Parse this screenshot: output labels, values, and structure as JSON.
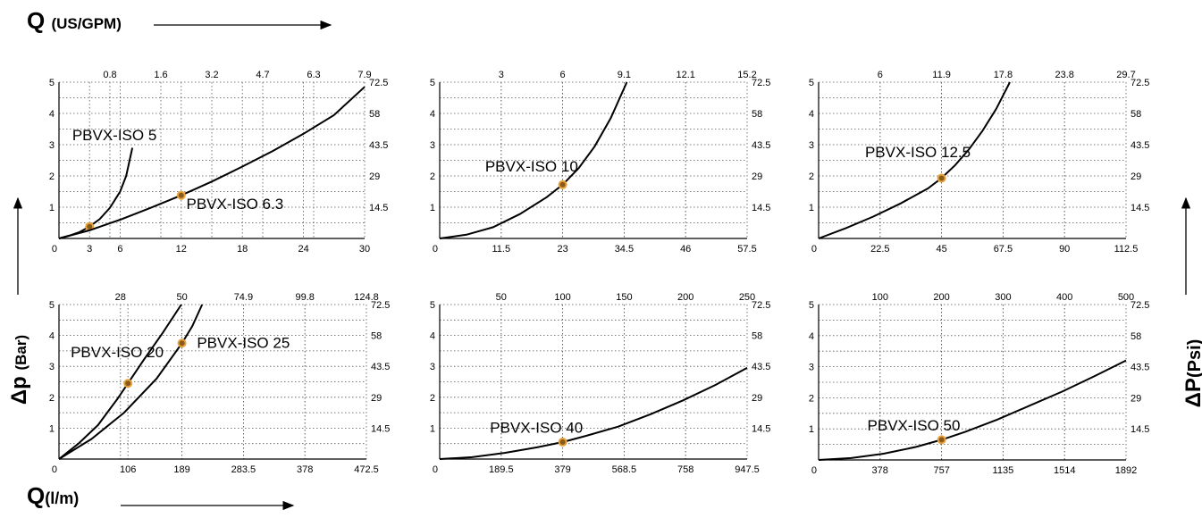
{
  "labels": {
    "q_top_main": "Q",
    "q_top_sub": "(US/GPM)",
    "q_bottom_main": "Q",
    "q_bottom_sub": "(l/m)",
    "dp_left_main": "Δp",
    "dp_left_sub": "(Bar)",
    "dp_right_main": "ΔP",
    "dp_right_sub": "(Psi)"
  },
  "colors": {
    "curve": "#000000",
    "marker": "#e8a23c",
    "grid": "#555555",
    "axis": "#000000"
  },
  "chart_data": [
    {
      "type": "line",
      "x_ticks": [
        0,
        3,
        6,
        12,
        18,
        24,
        30
      ],
      "x_tick_labels": [
        "0",
        "3",
        "6",
        "12",
        "18",
        "24",
        "30"
      ],
      "xlim": [
        0,
        30
      ],
      "top_ticks": [
        0.8,
        1.6,
        3.2,
        4.7,
        6.3,
        7.9
      ],
      "top_tick_labels": [
        "0.8",
        "1.6",
        "3.2",
        "4.7",
        "6.3",
        "7.9"
      ],
      "y_ticks": [
        1,
        2,
        3,
        4,
        5
      ],
      "y_tick_labels": [
        "1",
        "2",
        "3",
        "4",
        "5"
      ],
      "ylim": [
        0,
        5
      ],
      "right_ticks": [
        14.5,
        29,
        43.5,
        58,
        72.5
      ],
      "right_tick_labels": [
        "14.5",
        "29",
        "43.5",
        "58",
        "72.5"
      ],
      "grid": true,
      "series": [
        {
          "name": "PBVX-ISO 5",
          "x": [
            0,
            1,
            2,
            3,
            4,
            5,
            6,
            6.6,
            7.2
          ],
          "y": [
            0,
            0.09,
            0.2,
            0.38,
            0.62,
            0.98,
            1.5,
            2.0,
            2.9
          ],
          "marker": {
            "x": 3,
            "y": 0.38
          },
          "label_pos": {
            "x": 1.3,
            "y": 3.15
          }
        },
        {
          "name": "PBVX-ISO 6.3",
          "x": [
            0,
            3,
            6,
            9,
            12,
            15,
            18,
            21,
            24,
            27,
            30
          ],
          "y": [
            0,
            0.26,
            0.6,
            0.98,
            1.38,
            1.82,
            2.3,
            2.8,
            3.35,
            3.95,
            4.85
          ],
          "marker": {
            "x": 12,
            "y": 1.38
          },
          "label_pos": {
            "x": 12.5,
            "y": 0.95
          }
        }
      ]
    },
    {
      "type": "line",
      "x_ticks": [
        0,
        11.5,
        23,
        34.5,
        46,
        57.5
      ],
      "x_tick_labels": [
        "0",
        "11.5",
        "23",
        "34.5",
        "46",
        "57.5"
      ],
      "xlim": [
        0,
        57.5
      ],
      "top_ticks": [
        3,
        6,
        9.1,
        12.1,
        15.2
      ],
      "top_tick_labels": [
        "3",
        "6",
        "9.1",
        "12.1",
        "15.2"
      ],
      "y_ticks": [
        1,
        2,
        3,
        4,
        5
      ],
      "y_tick_labels": [
        "1",
        "2",
        "3",
        "4",
        "5"
      ],
      "ylim": [
        0,
        5
      ],
      "right_ticks": [
        14.5,
        29,
        43.5,
        58,
        72.5
      ],
      "right_tick_labels": [
        "14.5",
        "29",
        "43.5",
        "58",
        "72.5"
      ],
      "grid": true,
      "series": [
        {
          "name": "PBVX-ISO 10",
          "x": [
            0,
            5,
            10,
            15,
            20,
            23,
            26,
            29,
            32,
            35
          ],
          "y": [
            0,
            0.12,
            0.36,
            0.78,
            1.32,
            1.72,
            2.25,
            2.95,
            3.85,
            5.0
          ],
          "marker": {
            "x": 23,
            "y": 1.72
          },
          "label_pos": {
            "x": 8.5,
            "y": 2.15
          }
        }
      ]
    },
    {
      "type": "line",
      "x_ticks": [
        0,
        22.5,
        45,
        67.5,
        90,
        112.5
      ],
      "x_tick_labels": [
        "0",
        "22.5",
        "45",
        "67.5",
        "90",
        "112.5"
      ],
      "xlim": [
        0,
        112.5
      ],
      "top_ticks": [
        6,
        11.9,
        17.8,
        23.8,
        29.7
      ],
      "top_tick_labels": [
        "6",
        "11.9",
        "17.8",
        "23.8",
        "29.7"
      ],
      "y_ticks": [
        1,
        2,
        3,
        4,
        5
      ],
      "y_tick_labels": [
        "1",
        "2",
        "3",
        "4",
        "5"
      ],
      "ylim": [
        0,
        5
      ],
      "right_ticks": [
        14.5,
        29,
        43.5,
        58,
        72.5
      ],
      "right_tick_labels": [
        "14.5",
        "29",
        "43.5",
        "58",
        "72.5"
      ],
      "grid": true,
      "series": [
        {
          "name": "PBVX-ISO 12.5",
          "x": [
            0,
            10,
            20,
            30,
            40,
            45,
            50,
            55,
            60,
            65,
            70
          ],
          "y": [
            0,
            0.33,
            0.7,
            1.12,
            1.6,
            1.93,
            2.35,
            2.85,
            3.45,
            4.15,
            5.0
          ],
          "marker": {
            "x": 45,
            "y": 1.93
          },
          "label_pos": {
            "x": 17,
            "y": 2.6
          }
        }
      ]
    },
    {
      "type": "line",
      "x_ticks": [
        0,
        106,
        189,
        283.5,
        378,
        472.5
      ],
      "x_tick_labels": [
        "0",
        "106",
        "189",
        "283.5",
        "378",
        "472.5"
      ],
      "xlim": [
        0,
        472.5
      ],
      "top_ticks": [
        28,
        50,
        74.9,
        99.8,
        124.8
      ],
      "top_tick_labels": [
        "28",
        "50",
        "74.9",
        "99.8",
        "124.8"
      ],
      "y_ticks": [
        1,
        2,
        3,
        4,
        5
      ],
      "y_tick_labels": [
        "1",
        "2",
        "3",
        "4",
        "5"
      ],
      "ylim": [
        0,
        5
      ],
      "right_ticks": [
        14.5,
        29,
        43.5,
        58,
        72.5
      ],
      "right_tick_labels": [
        "14.5",
        "29",
        "43.5",
        "58",
        "72.5"
      ],
      "grid": true,
      "series": [
        {
          "name": "PBVX-ISO 20",
          "x": [
            0,
            30,
            60,
            90,
            106,
            130,
            160,
            188
          ],
          "y": [
            0,
            0.5,
            1.1,
            1.95,
            2.45,
            3.2,
            4.1,
            5.0
          ],
          "marker": {
            "x": 106,
            "y": 2.45
          },
          "label_pos": {
            "x": 18,
            "y": 3.3
          }
        },
        {
          "name": "PBVX-ISO 25",
          "x": [
            0,
            50,
            100,
            150,
            189,
            205,
            220
          ],
          "y": [
            0,
            0.65,
            1.5,
            2.6,
            3.75,
            4.3,
            5.0
          ],
          "marker": {
            "x": 189,
            "y": 3.75
          },
          "label_pos": {
            "x": 212,
            "y": 3.6
          }
        }
      ]
    },
    {
      "type": "line",
      "x_ticks": [
        0,
        189.5,
        379,
        568.5,
        758,
        947.5
      ],
      "x_tick_labels": [
        "0",
        "189.5",
        "379",
        "568.5",
        "758",
        "947.5"
      ],
      "xlim": [
        0,
        947.5
      ],
      "top_ticks": [
        50,
        100,
        150,
        200,
        250
      ],
      "top_tick_labels": [
        "50",
        "100",
        "150",
        "200",
        "250"
      ],
      "y_ticks": [
        1,
        2,
        3,
        4,
        5
      ],
      "y_tick_labels": [
        "1",
        "2",
        "3",
        "4",
        "5"
      ],
      "ylim": [
        0,
        5
      ],
      "right_ticks": [
        14.5,
        29,
        43.5,
        58,
        72.5
      ],
      "right_tick_labels": [
        "14.5",
        "29",
        "43.5",
        "58",
        "72.5"
      ],
      "grid": true,
      "series": [
        {
          "name": "PBVX-ISO 40",
          "x": [
            0,
            100,
            200,
            300,
            379,
            450,
            550,
            650,
            750,
            850,
            947.5
          ],
          "y": [
            0,
            0.06,
            0.2,
            0.38,
            0.55,
            0.75,
            1.05,
            1.45,
            1.9,
            2.4,
            2.95
          ],
          "marker": {
            "x": 379,
            "y": 0.55
          },
          "label_pos": {
            "x": 155,
            "y": 0.85
          }
        }
      ]
    },
    {
      "type": "line",
      "x_ticks": [
        0,
        378,
        757,
        1135,
        1514,
        1892
      ],
      "x_tick_labels": [
        "0",
        "378",
        "757",
        "1135",
        "1514",
        "1892"
      ],
      "xlim": [
        0,
        1892
      ],
      "top_ticks": [
        100,
        200,
        300,
        400,
        500
      ],
      "top_tick_labels": [
        "100",
        "200",
        "300",
        "400",
        "500"
      ],
      "y_ticks": [
        1,
        2,
        3,
        4,
        5
      ],
      "y_tick_labels": [
        "1",
        "2",
        "3",
        "4",
        "5"
      ],
      "ylim": [
        0,
        5
      ],
      "right_ticks": [
        14.5,
        29,
        43.5,
        58,
        72.5
      ],
      "right_tick_labels": [
        "14.5",
        "29",
        "43.5",
        "58",
        "72.5"
      ],
      "grid": true,
      "series": [
        {
          "name": "PBVX-ISO 50",
          "x": [
            0,
            200,
            400,
            600,
            757,
            900,
            1100,
            1300,
            1500,
            1700,
            1892
          ],
          "y": [
            0,
            0.06,
            0.2,
            0.42,
            0.65,
            0.9,
            1.3,
            1.75,
            2.2,
            2.7,
            3.2
          ],
          "marker": {
            "x": 757,
            "y": 0.65
          },
          "label_pos": {
            "x": 300,
            "y": 0.95
          }
        }
      ]
    }
  ]
}
